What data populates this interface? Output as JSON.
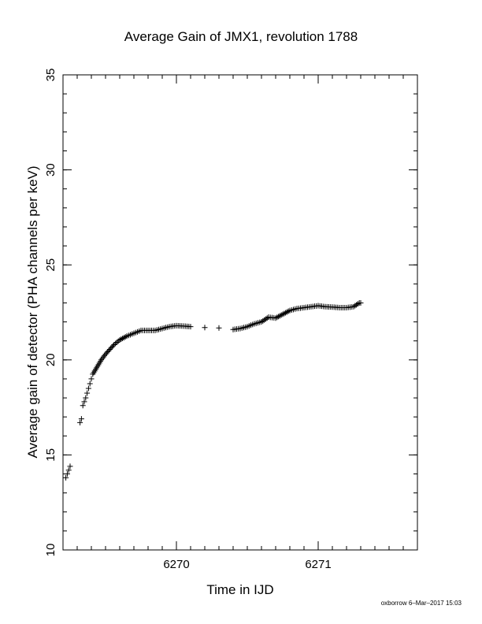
{
  "chart_data": {
    "type": "scatter",
    "title": "Average Gain of JMX1, revolution 1788",
    "xlabel": "Time in IJD",
    "ylabel": "Average gain of detector (PHA channels per keV)",
    "xlim": [
      6269.2,
      6271.7
    ],
    "ylim": [
      10,
      35
    ],
    "x_ticks": [
      {
        "value": 6270,
        "label": "6270"
      },
      {
        "value": 6271,
        "label": "6271"
      }
    ],
    "y_ticks": [
      {
        "value": 10,
        "label": "10"
      },
      {
        "value": 15,
        "label": "15"
      },
      {
        "value": 20,
        "label": "20"
      },
      {
        "value": 25,
        "label": "25"
      },
      {
        "value": 30,
        "label": "30"
      },
      {
        "value": 35,
        "label": "35"
      }
    ],
    "marker": "plus",
    "color": "#000000",
    "grid": false,
    "series": [
      {
        "x": [
          6269.22,
          6269.23,
          6269.24,
          6269.25,
          6269.32,
          6269.33,
          6269.34,
          6269.35,
          6269.36,
          6269.37,
          6269.38,
          6269.39,
          6269.4,
          6269.41,
          6269.43,
          6269.45,
          6269.47,
          6269.5,
          6269.53,
          6269.56,
          6269.6,
          6269.65,
          6269.7,
          6269.75,
          6269.8,
          6269.85,
          6269.9,
          6269.95,
          6270.0,
          6270.05,
          6270.1,
          6270.2,
          6270.3,
          6270.4,
          6270.45,
          6270.5,
          6270.55,
          6270.6,
          6270.65,
          6270.7,
          6270.75,
          6270.8,
          6270.85,
          6270.9,
          6270.95,
          6271.0,
          6271.05,
          6271.1,
          6271.15,
          6271.2,
          6271.25,
          6271.29,
          6271.3
        ],
        "y": [
          13.8,
          14.0,
          14.2,
          14.4,
          16.7,
          16.9,
          17.6,
          17.8,
          18.0,
          18.25,
          18.5,
          18.75,
          19.0,
          19.25,
          19.5,
          19.75,
          20.0,
          20.3,
          20.55,
          20.8,
          21.05,
          21.25,
          21.4,
          21.55,
          21.55,
          21.55,
          21.65,
          21.75,
          21.8,
          21.78,
          21.75,
          21.7,
          21.68,
          21.6,
          21.65,
          21.75,
          21.9,
          22.0,
          22.25,
          22.2,
          22.4,
          22.6,
          22.7,
          22.75,
          22.8,
          22.85,
          22.8,
          22.78,
          22.75,
          22.75,
          22.8,
          23.0,
          23.0
        ]
      }
    ]
  },
  "footer_text": "oxborrow  6–Mar–2017 15:03"
}
